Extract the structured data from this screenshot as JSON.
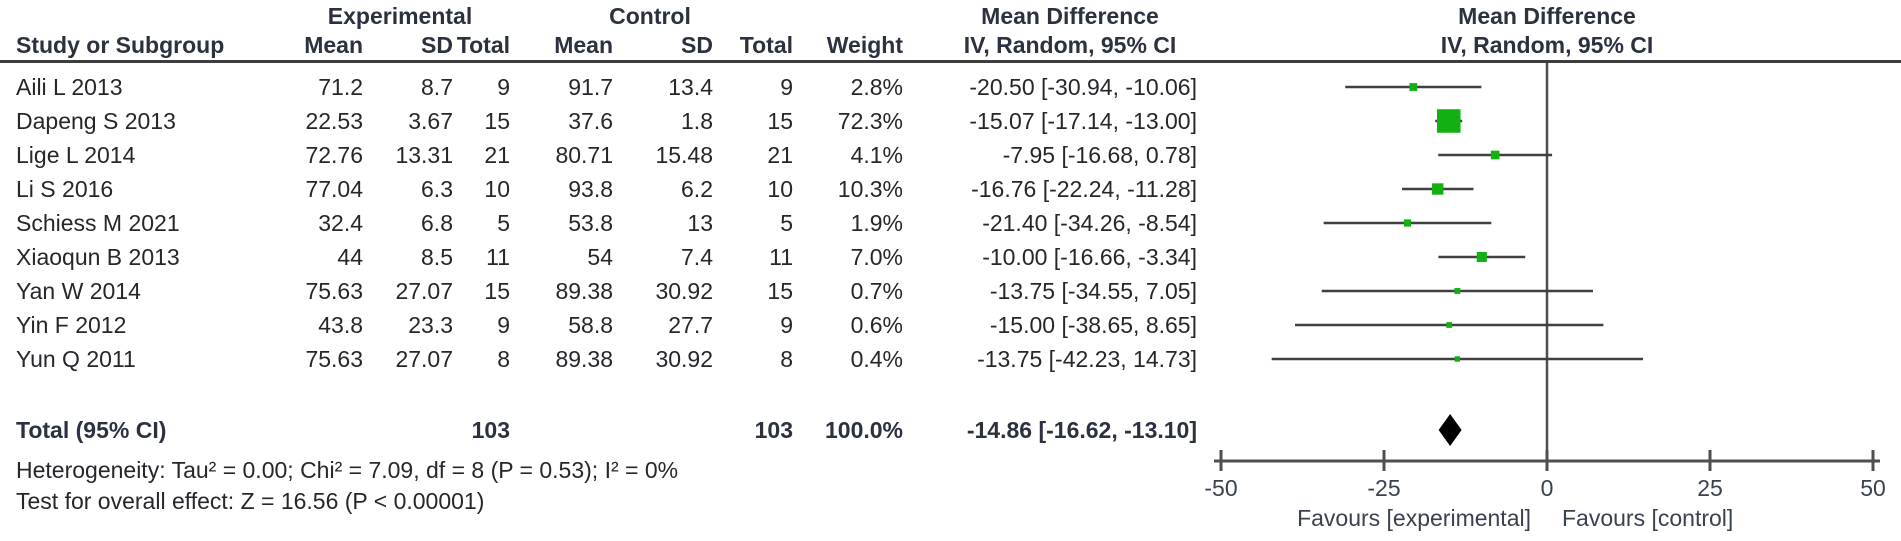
{
  "header": {
    "group_experimental": "Experimental",
    "group_control": "Control",
    "md_text_col": "Mean Difference",
    "md_plot_col": "Mean Difference",
    "sub": {
      "study": "Study or Subgroup",
      "mean": "Mean",
      "sd": "SD",
      "total": "Total",
      "weight": "Weight",
      "iv_text": "IV, Random, 95% CI",
      "iv_plot": "IV, Random, 95% CI"
    }
  },
  "table": {
    "rows": [
      {
        "study": "Aili L 2013",
        "mean_e": "71.2",
        "sd_e": "8.7",
        "total_e": "9",
        "mean_c": "91.7",
        "sd_c": "13.4",
        "total_c": "9",
        "weight": "2.8%",
        "ci": "-20.50 [-30.94, -10.06]"
      },
      {
        "study": "Dapeng S 2013",
        "mean_e": "22.53",
        "sd_e": "3.67",
        "total_e": "15",
        "mean_c": "37.6",
        "sd_c": "1.8",
        "total_c": "15",
        "weight": "72.3%",
        "ci": "-15.07 [-17.14, -13.00]"
      },
      {
        "study": "Lige L 2014",
        "mean_e": "72.76",
        "sd_e": "13.31",
        "total_e": "21",
        "mean_c": "80.71",
        "sd_c": "15.48",
        "total_c": "21",
        "weight": "4.1%",
        "ci": "-7.95 [-16.68, 0.78]"
      },
      {
        "study": "Li S 2016",
        "mean_e": "77.04",
        "sd_e": "6.3",
        "total_e": "10",
        "mean_c": "93.8",
        "sd_c": "6.2",
        "total_c": "10",
        "weight": "10.3%",
        "ci": "-16.76 [-22.24, -11.28]"
      },
      {
        "study": "Schiess M 2021",
        "mean_e": "32.4",
        "sd_e": "6.8",
        "total_e": "5",
        "mean_c": "53.8",
        "sd_c": "13",
        "total_c": "5",
        "weight": "1.9%",
        "ci": "-21.40 [-34.26, -8.54]"
      },
      {
        "study": "Xiaoqun B 2013",
        "mean_e": "44",
        "sd_e": "8.5",
        "total_e": "11",
        "mean_c": "54",
        "sd_c": "7.4",
        "total_c": "11",
        "weight": "7.0%",
        "ci": "-10.00 [-16.66, -3.34]"
      },
      {
        "study": "Yan W  2014",
        "mean_e": "75.63",
        "sd_e": "27.07",
        "total_e": "15",
        "mean_c": "89.38",
        "sd_c": "30.92",
        "total_c": "15",
        "weight": "0.7%",
        "ci": "-13.75 [-34.55, 7.05]"
      },
      {
        "study": "Yin F 2012",
        "mean_e": "43.8",
        "sd_e": "23.3",
        "total_e": "9",
        "mean_c": "58.8",
        "sd_c": "27.7",
        "total_c": "9",
        "weight": "0.6%",
        "ci": "-15.00 [-38.65, 8.65]"
      },
      {
        "study": "Yun Q 2011",
        "mean_e": "75.63",
        "sd_e": "27.07",
        "total_e": "8",
        "mean_c": "89.38",
        "sd_c": "30.92",
        "total_c": "8",
        "weight": "0.4%",
        "ci": "-13.75 [-42.23, 14.73]"
      }
    ],
    "total_row": {
      "label": "Total (95% CI)",
      "total_e": "103",
      "total_c": "103",
      "weight": "100.0%",
      "ci": "-14.86 [-16.62, -13.10]"
    }
  },
  "footer": {
    "heterogeneity": "Heterogeneity: Tau² = 0.00; Chi² = 7.09, df = 8 (P = 0.53); I² = 0%",
    "overall_effect": "Test for overall effect: Z = 16.56 (P < 0.00001)"
  },
  "chart_data": {
    "type": "scatter",
    "subtype": "forest-plot",
    "title": "Mean Difference, IV, Random, 95% CI",
    "studies": [
      {
        "name": "Aili L 2013",
        "md": -20.5,
        "lo": -30.94,
        "hi": -10.06,
        "weight": 2.8
      },
      {
        "name": "Dapeng S 2013",
        "md": -15.07,
        "lo": -17.14,
        "hi": -13.0,
        "weight": 72.3
      },
      {
        "name": "Lige L 2014",
        "md": -7.95,
        "lo": -16.68,
        "hi": 0.78,
        "weight": 4.1
      },
      {
        "name": "Li S 2016",
        "md": -16.76,
        "lo": -22.24,
        "hi": -11.28,
        "weight": 10.3
      },
      {
        "name": "Schiess M 2021",
        "md": -21.4,
        "lo": -34.26,
        "hi": -8.54,
        "weight": 1.9
      },
      {
        "name": "Xiaoqun B 2013",
        "md": -10.0,
        "lo": -16.66,
        "hi": -3.34,
        "weight": 7.0
      },
      {
        "name": "Yan W  2014",
        "md": -13.75,
        "lo": -34.55,
        "hi": 7.05,
        "weight": 0.7
      },
      {
        "name": "Yin F 2012",
        "md": -15.0,
        "lo": -38.65,
        "hi": 8.65,
        "weight": 0.6
      },
      {
        "name": "Yun Q 2011",
        "md": -13.75,
        "lo": -42.23,
        "hi": 14.73,
        "weight": 0.4
      }
    ],
    "total": {
      "name": "Total (95% CI)",
      "md": -14.86,
      "lo": -16.62,
      "hi": -13.1
    },
    "axis": {
      "min": -50,
      "max": 50,
      "ticks": [
        -50,
        -25,
        0,
        25,
        50
      ],
      "tick_labels": [
        "-50",
        "-25",
        "0",
        "25",
        "50"
      ]
    },
    "xlabel_left": "Favours [experimental]",
    "xlabel_right": "Favours [control]",
    "colors": {
      "marker": "#13b013",
      "diamond": "#000000",
      "ci_line": "#404040",
      "axis": "#4f4f4f"
    }
  }
}
